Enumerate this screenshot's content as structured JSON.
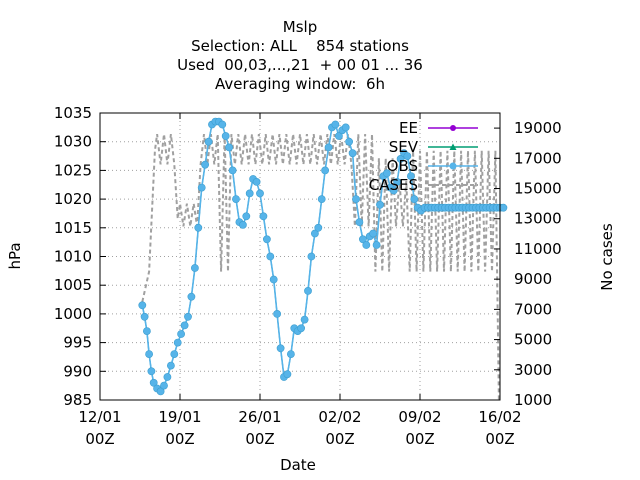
{
  "chart_data": {
    "type": "line",
    "title_lines": [
      "Mslp",
      "Selection: ALL    854 stations",
      "Used  00,03,...,21  + 00 01 ... 36",
      "Averaging window:  6h"
    ],
    "xlabel": "Date",
    "ylabel": "hPa",
    "y2label": "No cases",
    "xlim": [
      "2024-01-12 00Z",
      "2024-02-16 00Z"
    ],
    "ylim": [
      985,
      1035
    ],
    "y2lim": [
      1000,
      20000
    ],
    "x_ticks": [
      {
        "date": "2024-01-12",
        "label_top": "12/01",
        "label_bottom": "00Z"
      },
      {
        "date": "2024-01-19",
        "label_top": "19/01",
        "label_bottom": "00Z"
      },
      {
        "date": "2024-01-26",
        "label_top": "26/01",
        "label_bottom": "00Z"
      },
      {
        "date": "2024-02-02",
        "label_top": "02/02",
        "label_bottom": "00Z"
      },
      {
        "date": "2024-02-09",
        "label_top": "09/02",
        "label_bottom": "00Z"
      },
      {
        "date": "2024-02-16",
        "label_top": "16/02",
        "label_bottom": "00Z"
      }
    ],
    "y_ticks": [
      985,
      990,
      995,
      1000,
      1005,
      1010,
      1015,
      1020,
      1025,
      1030,
      1035
    ],
    "y2_ticks": [
      1000,
      3000,
      5000,
      7000,
      9000,
      11000,
      13000,
      15000,
      17000,
      19000
    ],
    "grid": true,
    "legend_position": "top-right",
    "legend": [
      {
        "label": "EE",
        "color": "#9400d3",
        "marker": "dot"
      },
      {
        "label": "SEV",
        "color": "#009e73",
        "marker": "triangle"
      },
      {
        "label": "OBS",
        "color": "#56b4e9",
        "marker": "circle"
      },
      {
        "label": "CASES",
        "color": "#a0a0a0",
        "marker": "none"
      }
    ],
    "obs_day_offsets": [
      0,
      0.25,
      0.5,
      0.75,
      1,
      1.25,
      1.5,
      1.75,
      2,
      2.25,
      2.5,
      2.75,
      3,
      3.25,
      3.5,
      3.75,
      4,
      4.25,
      4.5,
      4.75,
      5,
      5.25,
      5.5,
      5.75,
      6,
      6.25,
      6.5,
      6.75,
      7,
      7.25,
      7.5,
      7.75,
      8,
      8.25,
      8.5,
      8.75,
      9,
      9.25,
      9.5,
      9.75,
      10,
      10.25,
      10.5,
      10.75,
      11,
      11.25,
      11.5,
      11.75,
      12,
      12.25,
      12.5,
      12.75,
      13,
      13.25,
      13.5,
      13.75,
      14,
      14.25,
      14.5,
      14.75,
      15,
      15.25,
      15.5,
      15.75,
      16,
      16.25,
      16.5,
      16.75,
      17,
      17.25,
      17.5,
      17.75,
      18,
      18.25,
      18.5,
      18.75,
      19,
      19.25,
      19.5,
      19.75,
      20,
      20.25,
      20.5,
      20.75,
      21,
      21.25,
      21.5,
      21.75,
      22,
      22.25,
      22.5,
      22.75,
      23,
      23.25,
      23.5,
      23.75,
      24,
      24.25,
      24.5,
      24.75,
      25,
      25.25,
      25.5,
      25.75,
      26,
      26.25,
      26.5,
      26.75,
      27,
      27.25,
      27.5,
      27.75,
      28,
      28.25,
      28.5,
      28.75,
      29,
      29.25,
      29.5,
      29.75,
      30,
      30.25,
      30.5,
      30.75,
      31,
      31.25,
      31.5,
      31.75,
      32,
      32.25,
      32.5,
      32.75,
      33,
      33.25,
      33.5,
      33.75,
      34,
      34.25,
      34.5,
      34.75,
      35
    ],
    "series": [
      {
        "name": "OBS",
        "color": "#56b4e9",
        "days": [
          3.7,
          3.9,
          4.1,
          4.3,
          4.5,
          4.7,
          5.0,
          5.3,
          5.6,
          5.9,
          6.2,
          6.5,
          6.8,
          7.1,
          7.4,
          7.7,
          8.0,
          8.3,
          8.6,
          8.9,
          9.2,
          9.5,
          9.8,
          10.1,
          10.4,
          10.7,
          11.0,
          11.3,
          11.6,
          11.9,
          12.2,
          12.5,
          12.8,
          13.1,
          13.4,
          13.7,
          14.0,
          14.3,
          14.6,
          14.9,
          15.2,
          15.5,
          15.8,
          16.1,
          16.4,
          16.7,
          17.0,
          17.3,
          17.6,
          17.9,
          18.2,
          18.5,
          18.8,
          19.1,
          19.4,
          19.7,
          20.0,
          20.3,
          20.6,
          20.9,
          21.2,
          21.5,
          21.8,
          22.1,
          22.4,
          22.7,
          23.0,
          23.3,
          23.6,
          23.9,
          24.2,
          24.5,
          24.8,
          25.1,
          25.4,
          25.7,
          26.0,
          26.3,
          26.6,
          26.9,
          27.2,
          27.5,
          27.8,
          28.1,
          28.4,
          28.7,
          29.0,
          29.3,
          29.6,
          29.9,
          30.2,
          30.5,
          30.8,
          31.1,
          31.4,
          31.7,
          32.0,
          32.3,
          32.6,
          32.9,
          33.2,
          33.5,
          33.8,
          34.1,
          34.4,
          34.7,
          35.0,
          35.3
        ],
        "values": [
          1001.5,
          999.5,
          997,
          993,
          990,
          988,
          987,
          986.5,
          987.5,
          989,
          991,
          993,
          995,
          996.5,
          998,
          999.5,
          1003,
          1008,
          1015,
          1022,
          1026,
          1030,
          1033,
          1033.5,
          1033.5,
          1033,
          1031,
          1029,
          1025,
          1020,
          1016,
          1015.5,
          1017,
          1021,
          1023.5,
          1023,
          1021,
          1017,
          1013,
          1010,
          1006,
          1000,
          994,
          989,
          989.5,
          993,
          997.5,
          997,
          997.5,
          999,
          1004,
          1010,
          1014,
          1015,
          1020,
          1025,
          1029,
          1032.5,
          1033,
          1031,
          1032,
          1032.5,
          1030,
          1028,
          1020,
          1016,
          1013,
          1012,
          1013.5,
          1014,
          1012,
          1019,
          1024,
          1024.5,
          1022,
          1021.5,
          1023,
          1027,
          1028,
          1027.5,
          1024,
          1020,
          1018.5,
          1018,
          1018.5,
          1018.5,
          1018.5,
          1018.5,
          1018.5,
          1018.5,
          1018.5,
          1018.5,
          1018.5,
          1018.5,
          1018.5,
          1018.5,
          1018.5,
          1018.5,
          1018.5,
          1018.5,
          1018.5,
          1018.5,
          1018.5,
          1018.5,
          1018.5,
          1018.5,
          1018.5,
          1018.5
        ]
      }
    ],
    "cases": {
      "name": "CASES",
      "color": "#a0a0a0",
      "days": [
        3.7,
        4.3,
        4.8,
        5.0,
        5.3,
        5.6,
        5.9,
        6.2,
        6.5,
        6.8,
        7.0,
        7.3,
        7.6,
        7.9,
        8.2,
        8.5,
        8.8,
        9.1,
        9.4,
        9.7,
        10.0,
        10.3,
        10.6,
        10.9,
        11.2,
        11.5,
        11.8,
        12.1,
        12.4,
        12.7,
        13.0,
        13.3,
        13.6,
        13.9,
        14.2,
        14.5,
        14.8,
        15.1,
        15.4,
        15.7,
        16.0,
        16.3,
        16.6,
        16.9,
        17.2,
        17.5,
        17.8,
        18.1,
        18.4,
        18.7,
        19.0,
        19.3,
        19.6,
        19.9,
        20.2,
        20.5,
        20.8,
        21.1,
        21.4,
        21.7,
        22.0,
        22.3,
        22.6,
        22.9,
        23.2,
        23.5,
        23.8,
        24.1,
        24.4,
        24.7,
        25.0,
        25.3,
        25.6,
        25.9,
        26.2,
        26.5,
        26.8,
        27.1,
        27.4,
        27.7,
        28.0,
        28.3,
        28.6,
        28.9,
        29.2,
        29.5,
        29.8,
        30.1,
        30.4,
        30.7,
        31.0,
        31.3,
        31.6,
        31.9,
        32.2,
        32.5,
        32.8,
        33.1,
        33.4,
        33.7,
        34.0,
        34.3,
        34.6,
        34.9
      ],
      "values": [
        7500,
        9500,
        17500,
        18600,
        16600,
        18600,
        16600,
        18600,
        16600,
        13000,
        14000,
        12500,
        14000,
        12500,
        14000,
        12500,
        16600,
        18600,
        16600,
        18600,
        16600,
        18600,
        9500,
        18600,
        9500,
        18600,
        16600,
        18600,
        16600,
        18600,
        16600,
        18600,
        16600,
        18600,
        16600,
        18600,
        16600,
        18600,
        16600,
        18600,
        16600,
        18600,
        16600,
        18600,
        16600,
        18600,
        16600,
        18600,
        16600,
        18600,
        16600,
        18600,
        16600,
        18600,
        16600,
        18600,
        16600,
        18600,
        16600,
        18600,
        16600,
        12500,
        18600,
        12500,
        18600,
        12500,
        18600,
        9500,
        17000,
        9500,
        17000,
        9500,
        17000,
        12500,
        15500,
        12500,
        15500,
        9500,
        17500,
        9500,
        17500,
        9500,
        17500,
        9500,
        17500,
        9500,
        17500,
        9500,
        17500,
        9500,
        17500,
        9500,
        17500,
        9500,
        17500,
        9500,
        17500,
        9500,
        17500,
        9500,
        17500,
        9500,
        17500,
        1000
      ]
    }
  }
}
